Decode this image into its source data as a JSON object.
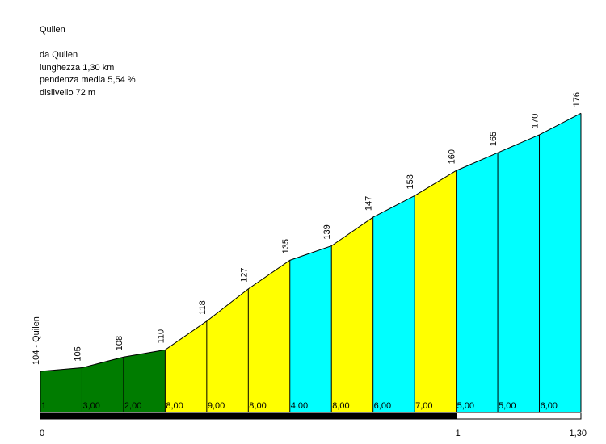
{
  "header": {
    "climb_name": "Quilen",
    "start_line": "da Quilen",
    "length_line": "lunghezza 1,30 km",
    "gradient_line": "pendenza media 5,54 %",
    "elevation_gain_line": "dislivello 72 m"
  },
  "chart_data": {
    "type": "area",
    "title": "Quilen",
    "x_unit": "km",
    "xlim": [
      0,
      1.3
    ],
    "x_tick_labels": [
      "0",
      "1",
      "1,30"
    ],
    "start_label": "104 - Quilen",
    "elevation_labels": [
      "105",
      "108",
      "110",
      "118",
      "127",
      "135",
      "139",
      "147",
      "153",
      "160",
      "165",
      "170",
      "176"
    ],
    "points": [
      {
        "x": 0.0,
        "elevation": 104
      },
      {
        "x": 0.1,
        "elevation": 105
      },
      {
        "x": 0.2,
        "elevation": 108
      },
      {
        "x": 0.3,
        "elevation": 110
      },
      {
        "x": 0.4,
        "elevation": 118
      },
      {
        "x": 0.5,
        "elevation": 127
      },
      {
        "x": 0.6,
        "elevation": 135
      },
      {
        "x": 0.7,
        "elevation": 139
      },
      {
        "x": 0.8,
        "elevation": 147
      },
      {
        "x": 0.9,
        "elevation": 153
      },
      {
        "x": 1.0,
        "elevation": 160
      },
      {
        "x": 1.1,
        "elevation": 165
      },
      {
        "x": 1.2,
        "elevation": 170
      },
      {
        "x": 1.3,
        "elevation": 176
      }
    ],
    "segments": [
      {
        "gradient_label": "1",
        "color": "#007c00"
      },
      {
        "gradient_label": "3,00",
        "color": "#007c00"
      },
      {
        "gradient_label": "2,00",
        "color": "#007c00"
      },
      {
        "gradient_label": "8,00",
        "color": "#ffff00"
      },
      {
        "gradient_label": "9,00",
        "color": "#ffff00"
      },
      {
        "gradient_label": "8,00",
        "color": "#ffff00"
      },
      {
        "gradient_label": "4,00",
        "color": "#00ffff"
      },
      {
        "gradient_label": "8,00",
        "color": "#ffff00"
      },
      {
        "gradient_label": "6,00",
        "color": "#00ffff"
      },
      {
        "gradient_label": "7,00",
        "color": "#ffff00"
      },
      {
        "gradient_label": "5,00",
        "color": "#00ffff"
      },
      {
        "gradient_label": "5,00",
        "color": "#00ffff"
      },
      {
        "gradient_label": "6,00",
        "color": "#00ffff"
      }
    ],
    "km_bar": [
      {
        "from": 0,
        "to": 1,
        "color": "#000000"
      },
      {
        "from": 1,
        "to": 1.3,
        "color": "#ffffff"
      }
    ],
    "legend": "none",
    "grid": false
  }
}
